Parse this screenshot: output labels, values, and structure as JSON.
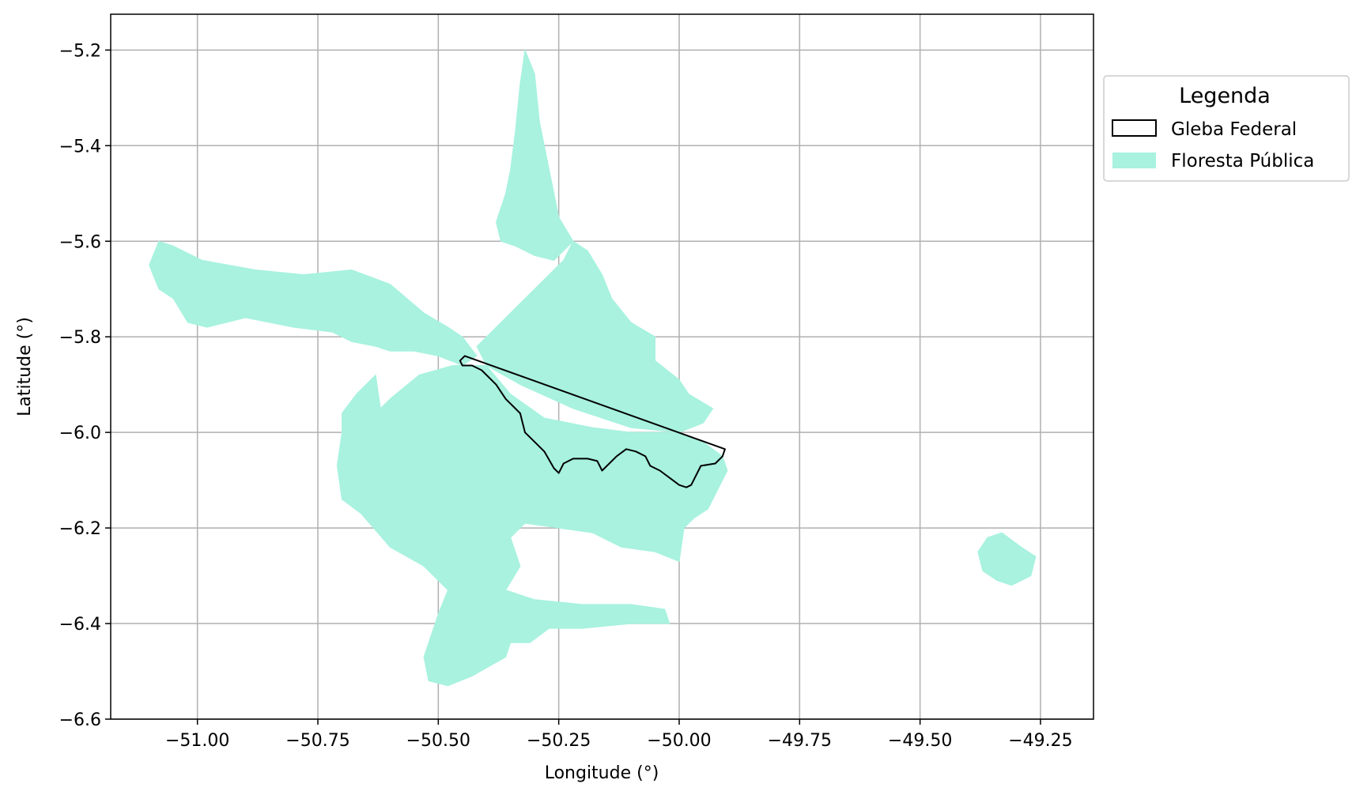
{
  "map": {
    "x_axis": {
      "label": "Longitude (°)",
      "ticks": [
        -51.0,
        -50.75,
        -50.5,
        -50.25,
        -50.0,
        -49.75,
        -49.5,
        -49.25
      ],
      "tick_labels": [
        "−51.00",
        "−50.75",
        "−50.50",
        "−50.25",
        "−50.00",
        "−49.75",
        "−49.50",
        "−49.25"
      ],
      "range": [
        -51.18,
        -49.14
      ]
    },
    "y_axis": {
      "label": "Latitude (°)",
      "ticks": [
        -5.2,
        -5.4,
        -5.6,
        -5.8,
        -6.0,
        -6.2,
        -6.4,
        -6.6
      ],
      "tick_labels": [
        "−5.2",
        "−5.4",
        "−5.6",
        "−5.8",
        "−6.0",
        "−6.2",
        "−6.4",
        "−6.6"
      ],
      "range": [
        -6.6,
        -5.125
      ]
    },
    "grid": true,
    "legend": {
      "title": "Legenda",
      "placement": "outside-right-top",
      "entries": [
        {
          "label": "Gleba Federal",
          "style": "outline",
          "color": "#000000"
        },
        {
          "label": "Floresta Pública",
          "style": "fill",
          "color": "#a8f2df"
        }
      ]
    },
    "colors": {
      "forest_fill": "#a8f2df",
      "gleba_outline": "#000000",
      "grid": "#b0b0b0"
    },
    "layers": {
      "floresta_publica": [
        [
          [
            -51.08,
            -5.6
          ],
          [
            -51.05,
            -5.61
          ],
          [
            -50.99,
            -5.64
          ],
          [
            -50.88,
            -5.66
          ],
          [
            -50.78,
            -5.67
          ],
          [
            -50.68,
            -5.66
          ],
          [
            -50.6,
            -5.69
          ],
          [
            -50.53,
            -5.75
          ],
          [
            -50.48,
            -5.78
          ],
          [
            -50.45,
            -5.8
          ],
          [
            -50.42,
            -5.84
          ],
          [
            -50.45,
            -5.86
          ],
          [
            -50.5,
            -5.84
          ],
          [
            -50.55,
            -5.83
          ],
          [
            -50.6,
            -5.83
          ],
          [
            -50.63,
            -5.82
          ],
          [
            -50.68,
            -5.81
          ],
          [
            -50.72,
            -5.79
          ],
          [
            -50.8,
            -5.78
          ],
          [
            -50.9,
            -5.76
          ],
          [
            -50.98,
            -5.78
          ],
          [
            -51.02,
            -5.77
          ],
          [
            -51.05,
            -5.72
          ],
          [
            -51.08,
            -5.7
          ],
          [
            -51.1,
            -5.65
          ]
        ],
        [
          [
            -50.63,
            -5.88
          ],
          [
            -50.62,
            -5.95
          ],
          [
            -50.6,
            -5.93
          ],
          [
            -50.54,
            -5.88
          ],
          [
            -50.47,
            -5.86
          ],
          [
            -50.4,
            -5.86
          ],
          [
            -50.35,
            -5.92
          ],
          [
            -50.28,
            -5.97
          ],
          [
            -50.18,
            -5.99
          ],
          [
            -50.1,
            -6.0
          ],
          [
            -50.0,
            -6.0
          ],
          [
            -49.95,
            -6.02
          ],
          [
            -49.91,
            -6.05
          ],
          [
            -49.9,
            -6.08
          ],
          [
            -49.92,
            -6.12
          ],
          [
            -49.94,
            -6.16
          ],
          [
            -49.97,
            -6.18
          ],
          [
            -49.99,
            -6.2
          ],
          [
            -50.0,
            -6.27
          ],
          [
            -50.05,
            -6.25
          ],
          [
            -50.12,
            -6.24
          ],
          [
            -50.18,
            -6.21
          ],
          [
            -50.25,
            -6.2
          ],
          [
            -50.32,
            -6.19
          ],
          [
            -50.35,
            -6.22
          ],
          [
            -50.33,
            -6.28
          ],
          [
            -50.36,
            -6.33
          ],
          [
            -50.3,
            -6.35
          ],
          [
            -50.2,
            -6.36
          ],
          [
            -50.1,
            -6.36
          ],
          [
            -50.03,
            -6.37
          ],
          [
            -50.02,
            -6.4
          ],
          [
            -50.1,
            -6.4
          ],
          [
            -50.2,
            -6.41
          ],
          [
            -50.27,
            -6.41
          ],
          [
            -50.31,
            -6.44
          ],
          [
            -50.35,
            -6.44
          ],
          [
            -50.36,
            -6.47
          ],
          [
            -50.43,
            -6.51
          ],
          [
            -50.48,
            -6.53
          ],
          [
            -50.52,
            -6.52
          ],
          [
            -50.53,
            -6.47
          ],
          [
            -50.5,
            -6.38
          ],
          [
            -50.48,
            -6.33
          ],
          [
            -50.53,
            -6.28
          ],
          [
            -50.6,
            -6.24
          ],
          [
            -50.66,
            -6.17
          ],
          [
            -50.7,
            -6.14
          ],
          [
            -50.71,
            -6.07
          ],
          [
            -50.7,
            -6.0
          ],
          [
            -50.7,
            -5.96
          ],
          [
            -50.67,
            -5.92
          ]
        ],
        [
          [
            -50.42,
            -5.82
          ],
          [
            -50.38,
            -5.78
          ],
          [
            -50.33,
            -5.73
          ],
          [
            -50.28,
            -5.68
          ],
          [
            -50.24,
            -5.64
          ],
          [
            -50.22,
            -5.6
          ],
          [
            -50.19,
            -5.62
          ],
          [
            -50.16,
            -5.67
          ],
          [
            -50.14,
            -5.72
          ],
          [
            -50.1,
            -5.77
          ],
          [
            -50.05,
            -5.8
          ],
          [
            -50.05,
            -5.85
          ],
          [
            -50.0,
            -5.89
          ],
          [
            -49.98,
            -5.92
          ],
          [
            -49.93,
            -5.95
          ],
          [
            -49.95,
            -5.98
          ],
          [
            -50.0,
            -6.0
          ],
          [
            -50.1,
            -5.99
          ],
          [
            -50.22,
            -5.95
          ],
          [
            -50.33,
            -5.9
          ],
          [
            -50.4,
            -5.86
          ]
        ],
        [
          [
            -50.34,
            -5.37
          ],
          [
            -50.33,
            -5.27
          ],
          [
            -50.32,
            -5.2
          ],
          [
            -50.3,
            -5.25
          ],
          [
            -50.29,
            -5.35
          ],
          [
            -50.27,
            -5.45
          ],
          [
            -50.25,
            -5.55
          ],
          [
            -50.22,
            -5.6
          ],
          [
            -50.26,
            -5.64
          ],
          [
            -50.3,
            -5.63
          ],
          [
            -50.34,
            -5.61
          ],
          [
            -50.37,
            -5.6
          ],
          [
            -50.38,
            -5.56
          ],
          [
            -50.36,
            -5.5
          ],
          [
            -50.35,
            -5.45
          ]
        ],
        [
          [
            -49.36,
            -6.22
          ],
          [
            -49.33,
            -6.21
          ],
          [
            -49.29,
            -6.24
          ],
          [
            -49.26,
            -6.26
          ],
          [
            -49.27,
            -6.3
          ],
          [
            -49.31,
            -6.32
          ],
          [
            -49.34,
            -6.31
          ],
          [
            -49.37,
            -6.29
          ],
          [
            -49.38,
            -6.25
          ]
        ]
      ],
      "gleba_federal": [
        [
          -50.445,
          -5.84
        ],
        [
          -49.905,
          -6.035
        ],
        [
          -49.91,
          -6.05
        ],
        [
          -49.925,
          -6.065
        ],
        [
          -49.955,
          -6.07
        ],
        [
          -49.975,
          -6.11
        ],
        [
          -49.985,
          -6.115
        ],
        [
          -50.0,
          -6.11
        ],
        [
          -50.02,
          -6.095
        ],
        [
          -50.04,
          -6.08
        ],
        [
          -50.06,
          -6.07
        ],
        [
          -50.07,
          -6.05
        ],
        [
          -50.09,
          -6.04
        ],
        [
          -50.11,
          -6.035
        ],
        [
          -50.13,
          -6.05
        ],
        [
          -50.15,
          -6.07
        ],
        [
          -50.16,
          -6.08
        ],
        [
          -50.17,
          -6.06
        ],
        [
          -50.19,
          -6.055
        ],
        [
          -50.22,
          -6.055
        ],
        [
          -50.24,
          -6.065
        ],
        [
          -50.25,
          -6.085
        ],
        [
          -50.26,
          -6.075
        ],
        [
          -50.28,
          -6.04
        ],
        [
          -50.3,
          -6.02
        ],
        [
          -50.32,
          -6.0
        ],
        [
          -50.33,
          -5.96
        ],
        [
          -50.36,
          -5.93
        ],
        [
          -50.38,
          -5.9
        ],
        [
          -50.41,
          -5.87
        ],
        [
          -50.43,
          -5.86
        ],
        [
          -50.45,
          -5.86
        ],
        [
          -50.455,
          -5.85
        ]
      ]
    }
  }
}
